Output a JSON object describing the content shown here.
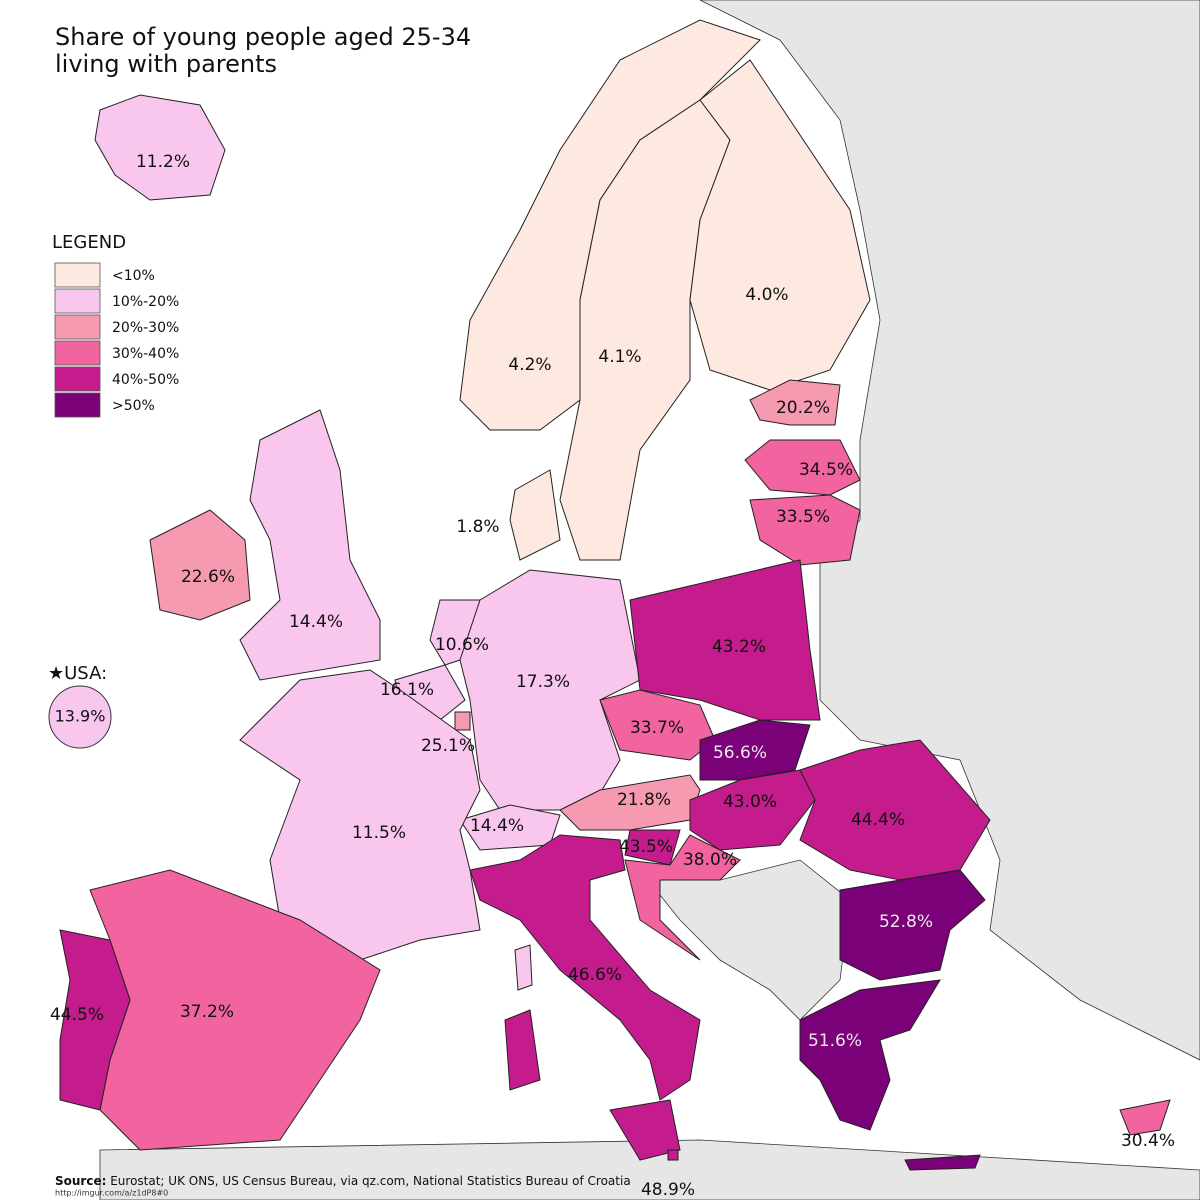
{
  "header": {
    "title_lines": [
      "Share of young people aged 25-34",
      "living with parents"
    ]
  },
  "legend": {
    "title": "LEGEND",
    "items": [
      {
        "label": "<10%",
        "color": "#fde9e0"
      },
      {
        "label": "10%-20%",
        "color": "#f9c6ee"
      },
      {
        "label": "20%-30%",
        "color": "#f59ab0"
      },
      {
        "label": "30%-40%",
        "color": "#f2649f"
      },
      {
        "label": "40%-50%",
        "color": "#c41c8c"
      },
      {
        "label": ">50%",
        "color": "#7a0177"
      }
    ]
  },
  "regions": [
    {
      "label": "11.2%",
      "color": "#f9c6ee"
    },
    {
      "label": "4.2%",
      "color": "#fde9e0"
    },
    {
      "label": "4.1%",
      "color": "#fde9e0"
    },
    {
      "label": "4.0%",
      "color": "#fde9e0"
    },
    {
      "label": "20.2%",
      "color": "#f59ab0"
    },
    {
      "label": "34.5%",
      "color": "#f2649f"
    },
    {
      "label": "33.5%",
      "color": "#f2649f"
    },
    {
      "label": "1.8%",
      "color": "#fde9e0"
    },
    {
      "label": "22.6%",
      "color": "#f59ab0"
    },
    {
      "label": "14.4%",
      "color": "#f9c6ee"
    },
    {
      "label": "10.6%",
      "color": "#f9c6ee"
    },
    {
      "label": "16.1%",
      "color": "#f9c6ee"
    },
    {
      "label": "25.1%",
      "color": "#f59ab0"
    },
    {
      "label": "17.3%",
      "color": "#f9c6ee"
    },
    {
      "label": "43.2%",
      "color": "#c41c8c"
    },
    {
      "label": "33.7%",
      "color": "#f2649f"
    },
    {
      "label": "56.6%",
      "color": "#7a0177"
    },
    {
      "label": "21.8%",
      "color": "#f59ab0"
    },
    {
      "label": "14.4%",
      "color": "#f9c6ee"
    },
    {
      "label": "43.0%",
      "color": "#c41c8c"
    },
    {
      "label": "44.4%",
      "color": "#c41c8c"
    },
    {
      "label": "43.5%",
      "color": "#c41c8c"
    },
    {
      "label": "38.0%",
      "color": "#f2649f"
    },
    {
      "label": "52.8%",
      "color": "#7a0177"
    },
    {
      "label": "51.6%",
      "color": "#7a0177"
    },
    {
      "label": "46.6%",
      "color": "#c41c8c"
    },
    {
      "label": "11.5%",
      "color": "#f9c6ee"
    },
    {
      "label": "37.2%",
      "color": "#f2649f"
    },
    {
      "label": "44.5%",
      "color": "#c41c8c"
    },
    {
      "label": "48.9%",
      "color": "#c41c8c"
    },
    {
      "label": "30.4%",
      "color": "#f2649f"
    }
  ],
  "usa": {
    "heading": "★USA:",
    "label": "13.9%",
    "color": "#f9c6ee"
  },
  "footer": {
    "source_label": "Source:",
    "source_text": " Eurostat; UK ONS, US Census Bureau, via qz.com, National Statistics Bureau of Croatia",
    "url": "http://imgur.com/a/z1dP8#0"
  }
}
